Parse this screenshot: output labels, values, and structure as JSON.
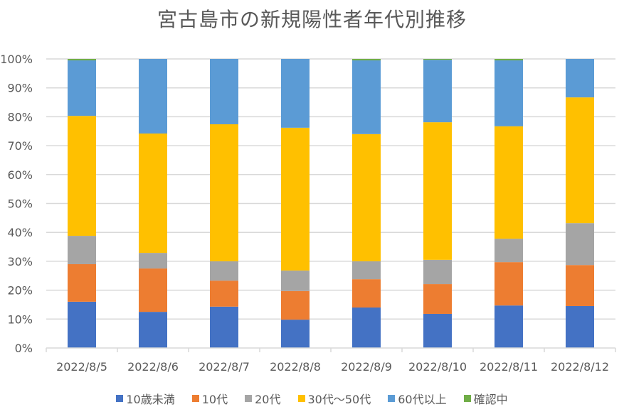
{
  "chart_data": {
    "type": "bar",
    "stacked": "percent",
    "title": "宮古島市の新規陽性者年代別推移",
    "xlabel": "",
    "ylabel": "",
    "ylim": [
      0,
      100
    ],
    "y_tick_labels": [
      "0%",
      "10%",
      "20%",
      "30%",
      "40%",
      "50%",
      "60%",
      "70%",
      "80%",
      "90%",
      "100%"
    ],
    "grid": true,
    "legend_position": "bottom",
    "categories": [
      "2022/8/5",
      "2022/8/6",
      "2022/8/7",
      "2022/8/8",
      "2022/8/9",
      "2022/8/10",
      "2022/8/11",
      "2022/8/12"
    ],
    "series": [
      {
        "name": "10歳未満",
        "color": "#4472C4",
        "values": [
          16.0,
          12.5,
          14.3,
          9.8,
          14.0,
          11.8,
          14.7,
          14.5
        ]
      },
      {
        "name": "10代",
        "color": "#ED7D31",
        "values": [
          13.0,
          15.0,
          9.0,
          9.9,
          9.8,
          10.3,
          15.0,
          14.2
        ]
      },
      {
        "name": "20代",
        "color": "#A5A5A5",
        "values": [
          9.8,
          5.4,
          6.7,
          7.1,
          6.2,
          8.4,
          8.1,
          14.5
        ]
      },
      {
        "name": "30代～50代",
        "color": "#FFC000",
        "values": [
          41.5,
          41.3,
          47.4,
          49.4,
          44.0,
          47.6,
          38.9,
          43.5
        ]
      },
      {
        "name": "60代以上",
        "color": "#5B9BD5",
        "values": [
          19.2,
          25.8,
          22.6,
          23.8,
          25.5,
          21.6,
          22.8,
          13.3
        ]
      },
      {
        "name": "確認中",
        "color": "#70AD47",
        "values": [
          0.5,
          0,
          0,
          0,
          0.5,
          0.3,
          0.5,
          0
        ]
      }
    ]
  }
}
